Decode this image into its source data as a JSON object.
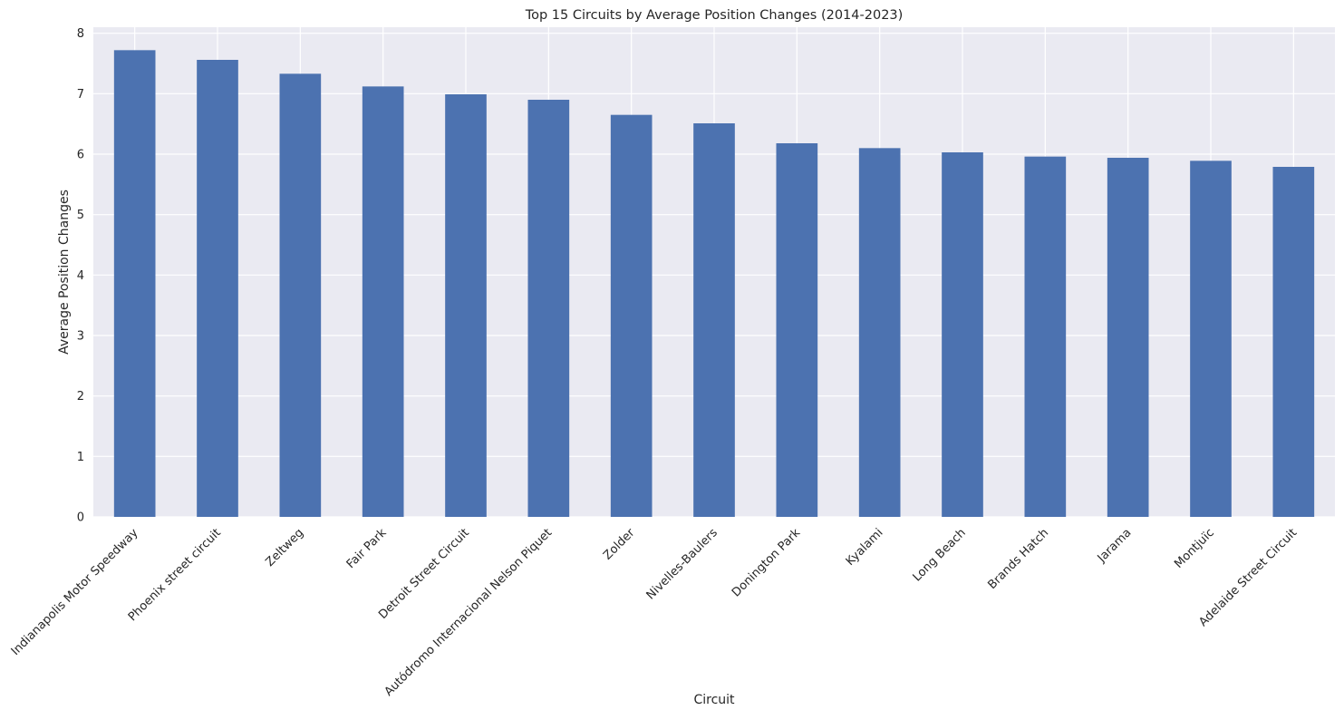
{
  "chart_data": {
    "type": "bar",
    "title": "Top 15 Circuits by Average Position Changes (2014-2023)",
    "xlabel": "Circuit",
    "ylabel": "Average Position Changes",
    "categories": [
      "Indianapolis Motor Speedway",
      "Phoenix street circuit",
      "Zeltweg",
      "Fair Park",
      "Detroit Street Circuit",
      "Autódromo Internacional Nelson Piquet",
      "Zolder",
      "Nivelles-Baulers",
      "Donington Park",
      "Kyalami",
      "Long Beach",
      "Brands Hatch",
      "Jarama",
      "Montjuïc",
      "Adelaide Street Circuit"
    ],
    "values": [
      7.72,
      7.56,
      7.33,
      7.12,
      6.99,
      6.9,
      6.65,
      6.51,
      6.18,
      6.1,
      6.03,
      5.96,
      5.94,
      5.89,
      5.79
    ],
    "ylim": [
      0,
      8.1
    ],
    "yticks": [
      0,
      1,
      2,
      3,
      4,
      5,
      6,
      7,
      8
    ],
    "grid": true,
    "bar_color": "#4c72b0",
    "background_color": "#eaeaf2",
    "grid_color": "#ffffff"
  }
}
